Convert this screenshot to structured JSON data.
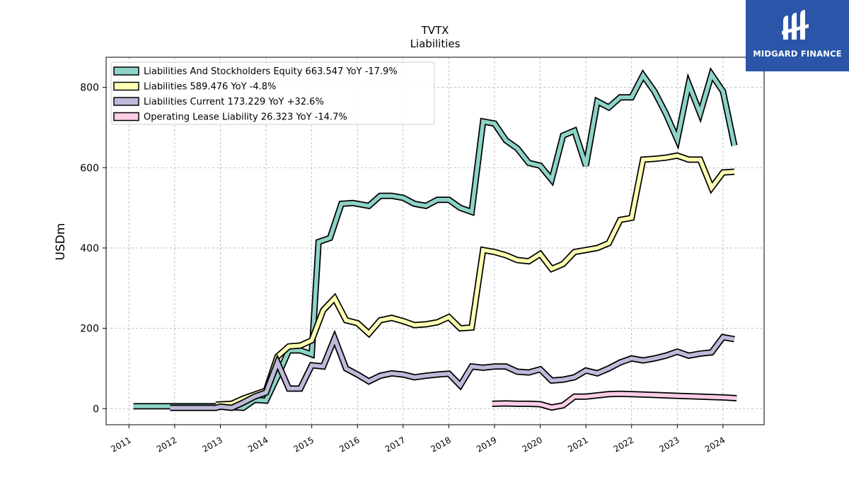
{
  "brand": {
    "name": "MIDGARD FINANCE",
    "logo_icon": "midgard-logo-icon",
    "background": "#2a55a8"
  },
  "chart_data": {
    "type": "line",
    "title": "TVTX",
    "subtitle": "Liabilities",
    "xlabel": "",
    "ylabel": "USDm",
    "xlim": [
      2010.5,
      2024.9
    ],
    "ylim": [
      -40,
      875
    ],
    "x_ticks": [
      "2011",
      "2012",
      "2013",
      "2014",
      "2015",
      "2016",
      "2017",
      "2018",
      "2019",
      "2020",
      "2021",
      "2022",
      "2023",
      "2024"
    ],
    "y_ticks": [
      0,
      200,
      400,
      600,
      800
    ],
    "grid": true,
    "legend_position": "top-left",
    "series": [
      {
        "name": "Liabilities And Stockholders Equity",
        "legend_label": "Liabilities And Stockholders Equity  663.547 YoY -17.9%",
        "color": "#8dd3c7",
        "points": [
          [
            2011.1,
            6
          ],
          [
            2011.9,
            6
          ],
          [
            2012.9,
            6
          ],
          [
            2013.2,
            4
          ],
          [
            2013.5,
            2
          ],
          [
            2013.75,
            22
          ],
          [
            2014.0,
            20
          ],
          [
            2014.25,
            80
          ],
          [
            2014.5,
            145
          ],
          [
            2014.75,
            145
          ],
          [
            2015.0,
            135
          ],
          [
            2015.15,
            415
          ],
          [
            2015.4,
            425
          ],
          [
            2015.65,
            510
          ],
          [
            2015.9,
            512
          ],
          [
            2016.25,
            505
          ],
          [
            2016.5,
            530
          ],
          [
            2016.75,
            530
          ],
          [
            2017.0,
            525
          ],
          [
            2017.25,
            510
          ],
          [
            2017.5,
            505
          ],
          [
            2017.75,
            520
          ],
          [
            2018.0,
            520
          ],
          [
            2018.25,
            500
          ],
          [
            2018.5,
            490
          ],
          [
            2018.75,
            715
          ],
          [
            2019.0,
            710
          ],
          [
            2019.25,
            668
          ],
          [
            2019.5,
            648
          ],
          [
            2019.75,
            612
          ],
          [
            2020.0,
            605
          ],
          [
            2020.25,
            570
          ],
          [
            2020.5,
            680
          ],
          [
            2020.75,
            692
          ],
          [
            2021.0,
            605
          ],
          [
            2021.25,
            765
          ],
          [
            2021.5,
            750
          ],
          [
            2021.75,
            775
          ],
          [
            2022.0,
            775
          ],
          [
            2022.25,
            830
          ],
          [
            2022.5,
            790
          ],
          [
            2022.75,
            735
          ],
          [
            2023.0,
            670
          ],
          [
            2023.25,
            808
          ],
          [
            2023.5,
            735
          ],
          [
            2023.75,
            832
          ],
          [
            2024.0,
            790
          ],
          [
            2024.25,
            655
          ]
        ]
      },
      {
        "name": "Liabilities",
        "legend_label": "Liabilities  589.476 YoY -4.8%",
        "color": "#ffffb3",
        "points": [
          [
            2012.9,
            10
          ],
          [
            2013.25,
            12
          ],
          [
            2013.5,
            25
          ],
          [
            2013.75,
            35
          ],
          [
            2014.0,
            45
          ],
          [
            2014.25,
            130
          ],
          [
            2014.5,
            155
          ],
          [
            2014.75,
            157
          ],
          [
            2015.0,
            170
          ],
          [
            2015.25,
            245
          ],
          [
            2015.5,
            275
          ],
          [
            2015.75,
            220
          ],
          [
            2016.0,
            213
          ],
          [
            2016.25,
            187
          ],
          [
            2016.5,
            220
          ],
          [
            2016.75,
            226
          ],
          [
            2017.0,
            218
          ],
          [
            2017.25,
            208
          ],
          [
            2017.5,
            210
          ],
          [
            2017.75,
            215
          ],
          [
            2018.0,
            228
          ],
          [
            2018.25,
            200
          ],
          [
            2018.5,
            202
          ],
          [
            2018.75,
            395
          ],
          [
            2019.0,
            390
          ],
          [
            2019.25,
            382
          ],
          [
            2019.5,
            370
          ],
          [
            2019.75,
            367
          ],
          [
            2020.0,
            385
          ],
          [
            2020.25,
            348
          ],
          [
            2020.5,
            360
          ],
          [
            2020.75,
            390
          ],
          [
            2021.0,
            395
          ],
          [
            2021.25,
            400
          ],
          [
            2021.5,
            412
          ],
          [
            2021.75,
            470
          ],
          [
            2022.0,
            475
          ],
          [
            2022.25,
            620
          ],
          [
            2022.5,
            622
          ],
          [
            2022.75,
            625
          ],
          [
            2023.0,
            630
          ],
          [
            2023.25,
            620
          ],
          [
            2023.5,
            620
          ],
          [
            2023.75,
            550
          ],
          [
            2024.0,
            588
          ],
          [
            2024.25,
            590
          ]
        ]
      },
      {
        "name": "Liabilities Current",
        "legend_label": "Liabilities Current  173.229 YoY +32.6%",
        "color": "#bebada",
        "points": [
          [
            2011.9,
            2
          ],
          [
            2012.9,
            2
          ],
          [
            2013.0,
            5
          ],
          [
            2013.25,
            2
          ],
          [
            2013.5,
            15
          ],
          [
            2013.75,
            30
          ],
          [
            2014.0,
            40
          ],
          [
            2014.25,
            115
          ],
          [
            2014.5,
            50
          ],
          [
            2014.75,
            50
          ],
          [
            2015.0,
            108
          ],
          [
            2015.25,
            105
          ],
          [
            2015.5,
            175
          ],
          [
            2015.75,
            100
          ],
          [
            2016.0,
            85
          ],
          [
            2016.25,
            68
          ],
          [
            2016.5,
            82
          ],
          [
            2016.75,
            88
          ],
          [
            2017.0,
            85
          ],
          [
            2017.25,
            78
          ],
          [
            2017.5,
            82
          ],
          [
            2017.75,
            85
          ],
          [
            2018.0,
            87
          ],
          [
            2018.25,
            58
          ],
          [
            2018.5,
            105
          ],
          [
            2018.75,
            102
          ],
          [
            2019.0,
            105
          ],
          [
            2019.25,
            105
          ],
          [
            2019.5,
            92
          ],
          [
            2019.75,
            90
          ],
          [
            2020.0,
            98
          ],
          [
            2020.25,
            70
          ],
          [
            2020.5,
            72
          ],
          [
            2020.75,
            78
          ],
          [
            2021.0,
            95
          ],
          [
            2021.25,
            88
          ],
          [
            2021.5,
            100
          ],
          [
            2021.75,
            115
          ],
          [
            2022.0,
            125
          ],
          [
            2022.25,
            120
          ],
          [
            2022.5,
            125
          ],
          [
            2022.75,
            132
          ],
          [
            2023.0,
            142
          ],
          [
            2023.25,
            132
          ],
          [
            2023.5,
            137
          ],
          [
            2023.75,
            140
          ],
          [
            2024.0,
            178
          ],
          [
            2024.25,
            173
          ]
        ]
      },
      {
        "name": "Operating Lease Liability",
        "legend_label": "Operating Lease Liability  26.323 YoY -14.7%",
        "color": "#fccde5",
        "points": [
          [
            2018.95,
            12
          ],
          [
            2019.25,
            13
          ],
          [
            2019.5,
            12
          ],
          [
            2019.75,
            12
          ],
          [
            2020.0,
            11
          ],
          [
            2020.25,
            3
          ],
          [
            2020.5,
            8
          ],
          [
            2020.75,
            30
          ],
          [
            2021.0,
            30
          ],
          [
            2021.25,
            33
          ],
          [
            2021.5,
            36
          ],
          [
            2021.75,
            37
          ],
          [
            2022.0,
            36
          ],
          [
            2022.5,
            34
          ],
          [
            2023.0,
            32
          ],
          [
            2023.5,
            30
          ],
          [
            2024.0,
            28
          ],
          [
            2024.3,
            26
          ]
        ]
      }
    ]
  }
}
